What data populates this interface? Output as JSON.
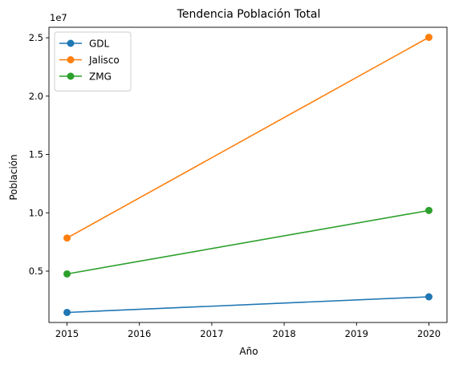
{
  "chart_data": {
    "type": "line",
    "title": "Tendencia Población Total",
    "xlabel": "Año",
    "ylabel": "Población",
    "y_offset_label": "1e7",
    "x_ticks": [
      "2015",
      "2016",
      "2017",
      "2018",
      "2019",
      "2020"
    ],
    "y_ticks": [
      "0.5",
      "1.0",
      "1.5",
      "2.0",
      "2.5"
    ],
    "x_tick_values": [
      2015,
      2016,
      2017,
      2018,
      2019,
      2020
    ],
    "y_tick_values": [
      5000000,
      10000000,
      15000000,
      20000000,
      25000000
    ],
    "xlim": [
      2014.75,
      2020.25
    ],
    "ylim": [
      600000,
      25900000
    ],
    "x": [
      2015,
      2020
    ],
    "series": [
      {
        "name": "GDL",
        "color": "#1f77b4",
        "values": [
          1460000,
          2800000
        ]
      },
      {
        "name": "Jalisco",
        "color": "#ff7f0e",
        "values": [
          7840000,
          25040000
        ]
      },
      {
        "name": "ZMG",
        "color": "#2ca02c",
        "values": [
          4760000,
          10200000
        ]
      }
    ],
    "legend_position": "upper-left",
    "grid": false
  }
}
